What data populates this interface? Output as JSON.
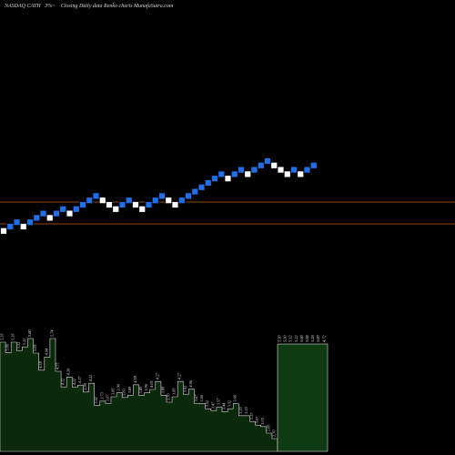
{
  "header": {
    "symbol": "NASDAQ CATH",
    "change": "3%~",
    "caption": "Closing Daily data  Renko  charts MunafaSutra.com"
  },
  "colors": {
    "background": "#000000",
    "brick_up": "#ffffff",
    "brick_down": "#1e6fe8",
    "brick_outline": "#000000",
    "reference_line": "#8b4a12",
    "volume_fill": "#0b2a0b",
    "volume_outline": "#dddddd",
    "volume_highlight": "#0f3a12"
  },
  "chart_data": {
    "type": "renko",
    "price_scale_shown": false,
    "reference_lines": [
      {
        "y": 0.7715
      },
      {
        "y": 0.7755
      }
    ],
    "bricks": [
      {
        "y": 0.7768,
        "dir": "up"
      },
      {
        "y": 0.776,
        "dir": "down"
      },
      {
        "y": 0.7752,
        "dir": "down"
      },
      {
        "y": 0.776,
        "dir": "up"
      },
      {
        "y": 0.7752,
        "dir": "down"
      },
      {
        "y": 0.7744,
        "dir": "down"
      },
      {
        "y": 0.7736,
        "dir": "down"
      },
      {
        "y": 0.7744,
        "dir": "up"
      },
      {
        "y": 0.7736,
        "dir": "down"
      },
      {
        "y": 0.7728,
        "dir": "down"
      },
      {
        "y": 0.7736,
        "dir": "up"
      },
      {
        "y": 0.7728,
        "dir": "down"
      },
      {
        "y": 0.772,
        "dir": "down"
      },
      {
        "y": 0.7712,
        "dir": "down"
      },
      {
        "y": 0.7704,
        "dir": "down"
      },
      {
        "y": 0.7712,
        "dir": "up"
      },
      {
        "y": 0.772,
        "dir": "up"
      },
      {
        "y": 0.7728,
        "dir": "up"
      },
      {
        "y": 0.772,
        "dir": "down"
      },
      {
        "y": 0.7712,
        "dir": "down"
      },
      {
        "y": 0.772,
        "dir": "up"
      },
      {
        "y": 0.7728,
        "dir": "up"
      },
      {
        "y": 0.772,
        "dir": "down"
      },
      {
        "y": 0.7712,
        "dir": "down"
      },
      {
        "y": 0.7704,
        "dir": "down"
      },
      {
        "y": 0.7712,
        "dir": "up"
      },
      {
        "y": 0.772,
        "dir": "up"
      },
      {
        "y": 0.7712,
        "dir": "down"
      },
      {
        "y": 0.7704,
        "dir": "down"
      },
      {
        "y": 0.7696,
        "dir": "down"
      },
      {
        "y": 0.7688,
        "dir": "down"
      },
      {
        "y": 0.768,
        "dir": "down"
      },
      {
        "y": 0.7672,
        "dir": "down"
      },
      {
        "y": 0.7664,
        "dir": "down"
      },
      {
        "y": 0.7672,
        "dir": "up"
      },
      {
        "y": 0.7664,
        "dir": "down"
      },
      {
        "y": 0.7656,
        "dir": "down"
      },
      {
        "y": 0.7664,
        "dir": "up"
      },
      {
        "y": 0.7656,
        "dir": "down"
      },
      {
        "y": 0.7648,
        "dir": "down"
      },
      {
        "y": 0.764,
        "dir": "down"
      },
      {
        "y": 0.7648,
        "dir": "up"
      },
      {
        "y": 0.7656,
        "dir": "up"
      },
      {
        "y": 0.7664,
        "dir": "up"
      },
      {
        "y": 0.7656,
        "dir": "down"
      },
      {
        "y": 0.7664,
        "dir": "up"
      },
      {
        "y": 0.7656,
        "dir": "down"
      },
      {
        "y": 0.7648,
        "dir": "down"
      }
    ],
    "volume_labels": [
      "5.35",
      "5.06",
      "5.35",
      "5.12",
      "5.22",
      "5.80",
      "5.05",
      "4.58",
      "4.94",
      "5.74",
      "4.55",
      "4.12",
      "4.39",
      "4.12",
      "4.17",
      "3.98",
      "4.22",
      "3.61",
      "3.73",
      "3.67",
      "3.85",
      "3.96",
      "3.83",
      "3.89",
      "4.18",
      "3.89",
      "3.96",
      "4.05",
      "4.27",
      "3.89",
      "3.70",
      "3.85",
      "4.27",
      "3.92",
      "4.06",
      "3.67",
      "3.66",
      "3.52",
      "3.47",
      "3.57",
      "3.44",
      "3.52",
      "3.66",
      "3.33",
      "3.33",
      "3.17",
      "3.07",
      "3.03",
      "2.85",
      "2.70",
      "5.30",
      "5.30",
      "5.12",
      "5.22",
      "5.00",
      "5.08",
      "5.28",
      "5.00",
      "4.72"
    ]
  }
}
